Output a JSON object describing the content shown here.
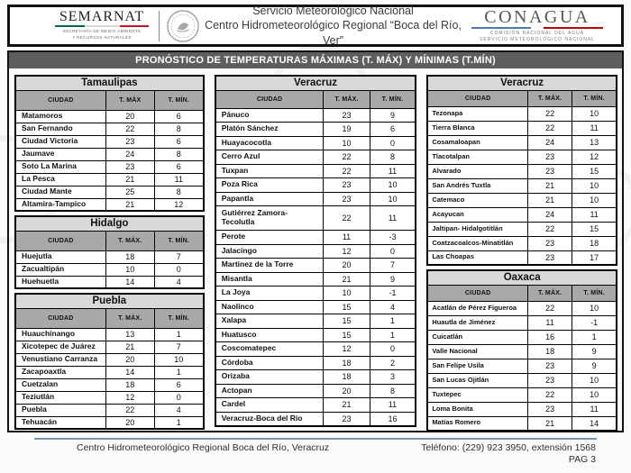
{
  "colors": {
    "banner_bg": "#5e5e5e",
    "state_header_bg": "#d9d9d9",
    "column_header_bg": "#a8a8a8",
    "footer_divider": "#7d93ad",
    "semarnat_green": "#006847",
    "semarnat_red": "#ce1126",
    "conagua_blue": "#4a7ab5",
    "conagua_red": "#c00000"
  },
  "header": {
    "semarnat_wordmark": "SEMARNAT",
    "semarnat_sub1": "SECRETARÍA DE MEDIO AMBIENTE",
    "semarnat_sub2": "Y RECURSOS NATURALES",
    "title_line1": "Servicio Meteorológico Nacional",
    "title_line2": "Centro Hidrometeorológico Regional “Boca del Río, Ver”",
    "conagua_wordmark": "CONAGUA",
    "conagua_sub1": "COMISIÓN NACIONAL DEL AGUA",
    "conagua_sub2": "SERVICIO METEOROLÓGICO NACIONAL"
  },
  "banner_title": "PRONÓSTICO DE TEMPERATURAS MÁXIMAS (T. MÁX) Y MÍNIMAS (T.MÍN)",
  "columns": [
    {
      "tables": [
        {
          "state": "Tamaulipas",
          "headers": [
            "CIUDAD",
            "T. MÁX",
            "T. MÍN."
          ],
          "rows": [
            [
              "Matamoros",
              "20",
              "6"
            ],
            [
              "San Fernando",
              "22",
              "8"
            ],
            [
              "Ciudad Victoria",
              "23",
              "6"
            ],
            [
              "Jaumave",
              "24",
              "8"
            ],
            [
              "Soto La Marina",
              "23",
              "6"
            ],
            [
              "La Pesca",
              "21",
              "11"
            ],
            [
              "Ciudad Mante",
              "25",
              "8"
            ],
            [
              "Altamira-Tampico",
              "21",
              "12"
            ]
          ]
        },
        {
          "state": "Hidalgo",
          "headers": [
            "CIUDAD",
            "T. MÁX.",
            "T. MÍN."
          ],
          "rows": [
            [
              "Huejutla",
              "18",
              "7"
            ],
            [
              "Zacualtipán",
              "10",
              "0"
            ],
            [
              "Huehuetla",
              "14",
              "4"
            ]
          ]
        },
        {
          "state": "Puebla",
          "headers": [
            "CIUDAD",
            "T. MÁX.",
            "T. MÍN."
          ],
          "rows": [
            [
              "Huauchinango",
              "13",
              "1"
            ],
            [
              "Xicotepec de Juárez",
              "21",
              "7"
            ],
            [
              "Venustiano Carranza",
              "20",
              "10"
            ],
            [
              "Zacapoaxtla",
              "14",
              "1"
            ],
            [
              "Cuetzalan",
              "18",
              "6"
            ],
            [
              "Teziutlán",
              "12",
              "0"
            ],
            [
              "Puebla",
              "22",
              "4"
            ],
            [
              "Tehuacán",
              "20",
              "1"
            ]
          ]
        }
      ]
    },
    {
      "tables": [
        {
          "state": "Veracruz",
          "headers": [
            "CIUDAD",
            "T. MÁX.",
            "T. MÍN."
          ],
          "rows": [
            [
              "Pánuco",
              "23",
              "9"
            ],
            [
              "Platón Sánchez",
              "19",
              "6"
            ],
            [
              "Huayacocotla",
              "10",
              "0"
            ],
            [
              "Cerro Azul",
              "22",
              "8"
            ],
            [
              "Tuxpan",
              "22",
              "11"
            ],
            [
              "Poza Rica",
              "23",
              "10"
            ],
            [
              "Papantla",
              "23",
              "10"
            ],
            [
              "Gutiérrez Zamora-\nTecolutla",
              "22",
              "11"
            ],
            [
              "Perote",
              "11",
              "-3"
            ],
            [
              "Jalacingo",
              "12",
              "0"
            ],
            [
              "Martinez de la Torre",
              "20",
              "7"
            ],
            [
              "Misantla",
              "21",
              "9"
            ],
            [
              "La Joya",
              "10",
              "-1"
            ],
            [
              "Naolinco",
              "15",
              "4"
            ],
            [
              "Xalapa",
              "15",
              "1"
            ],
            [
              "Huatusco",
              "15",
              "1"
            ],
            [
              "Coscomatepec",
              "12",
              "0"
            ],
            [
              "Córdoba",
              "18",
              "2"
            ],
            [
              "Orizaba",
              "18",
              "3"
            ],
            [
              "Actopan",
              "20",
              "8"
            ],
            [
              "Cardel",
              "21",
              "11"
            ],
            [
              "Veracruz-Boca del Rio",
              "23",
              "16"
            ]
          ]
        }
      ]
    },
    {
      "tables": [
        {
          "state": "Veracruz",
          "headers": [
            "CIUDAD",
            "T. MÁX.",
            "T. MÍN."
          ],
          "rows": [
            [
              "Tezonapa",
              "22",
              "10"
            ],
            [
              "Tierra Blanca",
              "22",
              "11"
            ],
            [
              "Cosamaloapan",
              "24",
              "13"
            ],
            [
              "Tlacotalpan",
              "23",
              "12"
            ],
            [
              "Alvarado",
              "23",
              "15"
            ],
            [
              "San Andrés Tuxtla",
              "21",
              "10"
            ],
            [
              "Catemaco",
              "21",
              "10"
            ],
            [
              "Acayucan",
              "24",
              "11"
            ],
            [
              "Jaltipan- Hidalgotitlán",
              "22",
              "15"
            ],
            [
              "Coatzacoalcos-Minatitlán",
              "23",
              "18"
            ],
            [
              "Las Choapas",
              "23",
              "17"
            ]
          ]
        },
        {
          "state": "Oaxaca",
          "headers": [
            "CIUDAD",
            "T. MÁX.",
            "T. MÍN."
          ],
          "rows": [
            [
              "Acatlán de Pérez Figueroa",
              "22",
              "10"
            ],
            [
              "Huautla de Jiménez",
              "11",
              "-1"
            ],
            [
              "Cuicatlán",
              "16",
              "1"
            ],
            [
              "Valle Nacional",
              "18",
              "9"
            ],
            [
              "San Felipe Usila",
              "23",
              "9"
            ],
            [
              "San Lucas Ojitlán",
              "23",
              "10"
            ],
            [
              "Tuxtepec",
              "22",
              "10"
            ],
            [
              "Loma Bonita",
              "23",
              "11"
            ],
            [
              "Matías Romero",
              "21",
              "14"
            ]
          ]
        }
      ]
    }
  ],
  "footer": {
    "left": "Centro Hidrometeorológico Regional Boca del Río, Veracruz",
    "phone": "Teléfono: (229) 923 3950, extensión 1568",
    "page": "PAG 3"
  }
}
